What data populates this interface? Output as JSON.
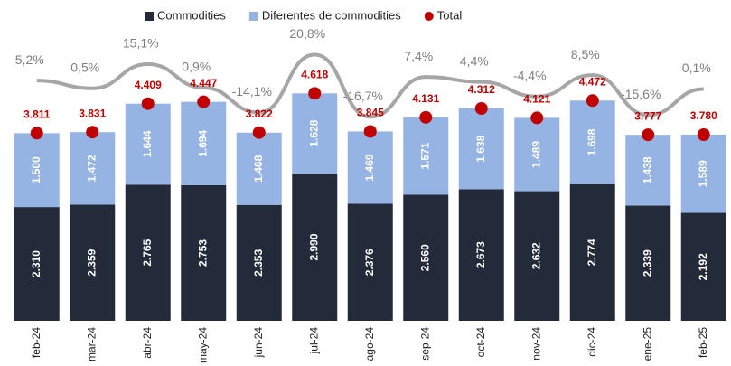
{
  "chart_data": {
    "type": "bar",
    "stacked": true,
    "categories": [
      "feb-24",
      "mar-24",
      "abr-24",
      "may-24",
      "jun-24",
      "jul-24",
      "ago-24",
      "sep-24",
      "oct-24",
      "nov-24",
      "dic-24",
      "ene-25",
      "feb-25"
    ],
    "series": [
      {
        "name": "Commodities",
        "color": "#232a3a",
        "values": [
          2310,
          2359,
          2765,
          2753,
          2353,
          2990,
          2376,
          2560,
          2673,
          2632,
          2774,
          2339,
          2192
        ],
        "value_labels": [
          "2.310",
          "2.359",
          "2.765",
          "2.753",
          "2.353",
          "2.990",
          "2.376",
          "2.560",
          "2.673",
          "2.632",
          "2.774",
          "2.339",
          "2.192"
        ]
      },
      {
        "name": "Diferentes de commodities",
        "color": "#95b3e3",
        "values": [
          1500,
          1472,
          1644,
          1694,
          1468,
          1628,
          1469,
          1571,
          1638,
          1489,
          1698,
          1438,
          1589
        ],
        "value_labels": [
          "1.500",
          "1.472",
          "1.644",
          "1.694",
          "1.468",
          "1.628",
          "1.469",
          "1.571",
          "1.638",
          "1.489",
          "1.698",
          "1.438",
          "1.589"
        ]
      },
      {
        "name": "Total",
        "color": "#c00000",
        "type": "marker",
        "values": [
          3811,
          3831,
          4409,
          4447,
          3822,
          4618,
          3845,
          4131,
          4312,
          4121,
          4472,
          3777,
          3780
        ],
        "value_labels": [
          "3.811",
          "3.831",
          "4.409",
          "4.447",
          "3.822",
          "4.618",
          "3.845",
          "4.131",
          "4.312",
          "4.121",
          "4.472",
          "3.777",
          "3.780"
        ]
      },
      {
        "color": "#a6a6a6",
        "type": "line",
        "axis": "y2",
        "values": [
          5.2,
          0.5,
          15.1,
          0.9,
          -14.1,
          20.8,
          -16.7,
          7.4,
          4.4,
          -4.4,
          8.5,
          -15.6,
          0.1
        ],
        "value_labels": [
          "5,2%",
          "0,5%",
          "15,1%",
          "0,9%",
          "-14,1%",
          "20,8%",
          "-16,7%",
          "7,4%",
          "4,4%",
          "-4,4%",
          "8,5%",
          "-15,6%",
          "0,1%"
        ]
      }
    ],
    "ylim": [
      0,
      6000
    ],
    "y2lim": [
      -28,
      32
    ]
  }
}
